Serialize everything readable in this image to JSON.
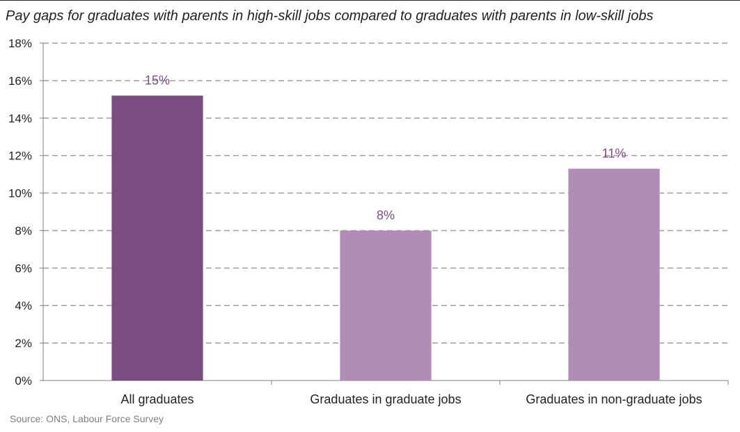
{
  "chart_data": {
    "type": "bar",
    "title": "Pay gaps for graduates with parents in high-skill jobs compared to graduates with parents in low-skill jobs",
    "categories": [
      "All graduates",
      "Graduates in graduate jobs",
      "Graduates in non-graduate jobs"
    ],
    "values": [
      15.2,
      8.0,
      11.3
    ],
    "data_labels": [
      "15%",
      "8%",
      "11%"
    ],
    "bar_colors": [
      "#7a4d80",
      "#b08cb6",
      "#b08cb6"
    ],
    "label_color": "#7a4d80",
    "ylim": [
      0,
      18
    ],
    "yticks": [
      0,
      2,
      4,
      6,
      8,
      10,
      12,
      14,
      16,
      18
    ],
    "ytick_labels": [
      "0%",
      "2%",
      "4%",
      "6%",
      "8%",
      "10%",
      "12%",
      "14%",
      "16%",
      "18%"
    ],
    "xlabel": "",
    "ylabel": "",
    "grid": "dashed horizontal",
    "legend": "none"
  },
  "source": "Source: ONS, Labour Force Survey"
}
